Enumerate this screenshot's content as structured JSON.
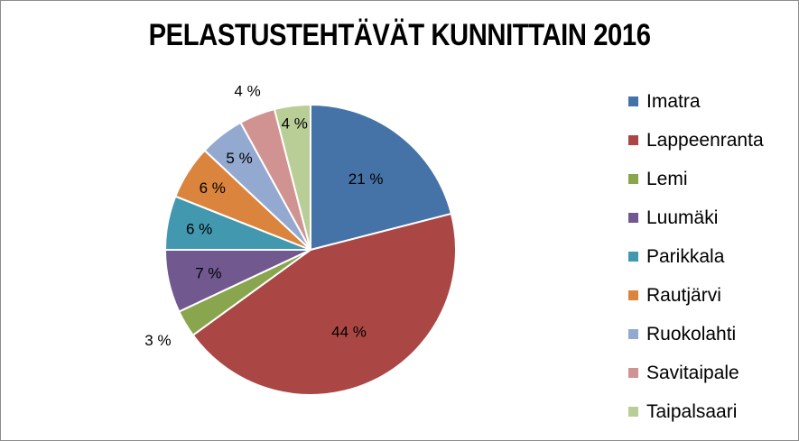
{
  "chart_data": {
    "type": "pie",
    "title": "PELASTUSTEHTÄVÄT KUNNITTAIN 2016",
    "categories": [
      "Imatra",
      "Lappeenranta",
      "Lemi",
      "Luumäki",
      "Parikkala",
      "Rautjärvi",
      "Ruokolahti",
      "Savitaipale",
      "Taipalsaari"
    ],
    "values": [
      21,
      44,
      3,
      7,
      6,
      6,
      5,
      4,
      4
    ],
    "labels": [
      "21 %",
      "44 %",
      "3 %",
      "7 %",
      "6 %",
      "6 %",
      "5 %",
      "4 %",
      "4 %"
    ],
    "colors": [
      "#4572A7",
      "#AA4643",
      "#89A54E",
      "#71588F",
      "#4198AF",
      "#DB843D",
      "#93A9CF",
      "#D19392",
      "#B9CD96"
    ],
    "legend_position": "right"
  }
}
